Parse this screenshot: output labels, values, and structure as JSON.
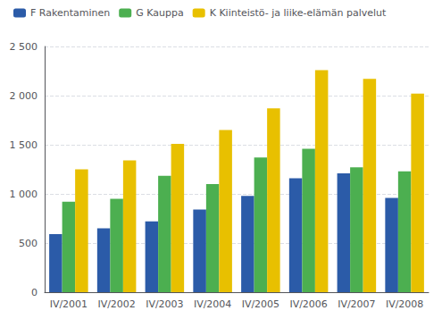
{
  "chart_data": {
    "type": "bar",
    "categories": [
      "IV/2001",
      "IV/2002",
      "IV/2003",
      "IV/2004",
      "IV/2005",
      "IV/2006",
      "IV/2007",
      "IV/2008"
    ],
    "series": [
      {
        "name": "F Rakentaminen",
        "color": "#2B5BA8",
        "values": [
          590,
          650,
          720,
          840,
          980,
          1160,
          1210,
          960
        ]
      },
      {
        "name": "G Kauppa",
        "color": "#4CAF50",
        "values": [
          920,
          950,
          1185,
          1100,
          1370,
          1460,
          1270,
          1230
        ]
      },
      {
        "name": "K Kiinteistö- ja liike-elämän palvelut",
        "color": "#E8C000",
        "values": [
          1250,
          1340,
          1510,
          1650,
          1870,
          2260,
          2170,
          2020
        ]
      }
    ],
    "ylim": [
      0,
      2500
    ],
    "yticks": [
      0,
      500,
      {
        "value": 1000,
        "label": "1 000"
      },
      {
        "value": 1500,
        "label": "1 500"
      },
      {
        "value": 2000,
        "label": "2 000"
      },
      {
        "value": 2500,
        "label": "2 500"
      }
    ],
    "grid": true,
    "legend": "upper left"
  }
}
